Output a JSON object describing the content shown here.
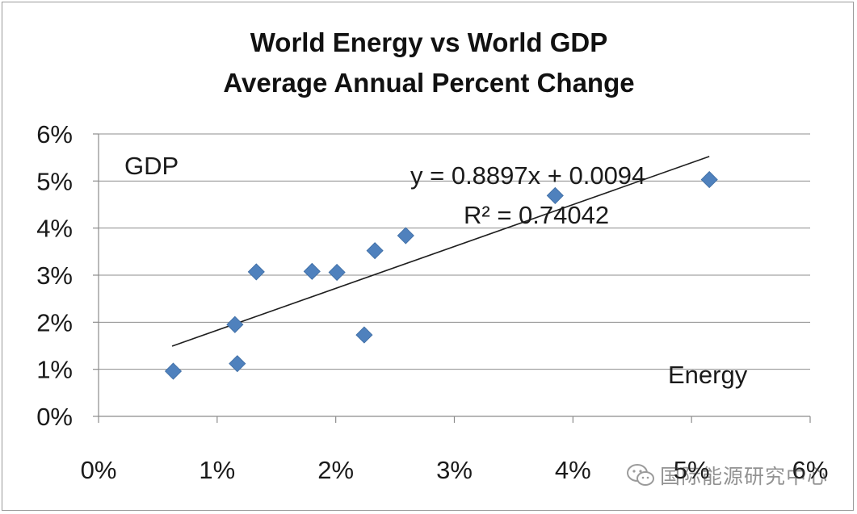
{
  "chart_data": {
    "type": "scatter",
    "title": [
      "World Energy vs World GDP",
      "Average Annual Percent Change"
    ],
    "xlabel": "Energy",
    "ylabel": "GDP",
    "xlim": [
      0,
      0.06
    ],
    "ylim": [
      0,
      0.06
    ],
    "x_ticks": [
      "0%",
      "1%",
      "2%",
      "3%",
      "4%",
      "5%",
      "6%"
    ],
    "y_ticks": [
      "0%",
      "1%",
      "2%",
      "3%",
      "4%",
      "5%",
      "6%"
    ],
    "grid": "horizontal",
    "series": [
      {
        "points": [
          {
            "x": 0.0063,
            "y": 0.0096
          },
          {
            "x": 0.0115,
            "y": 0.0195
          },
          {
            "x": 0.0117,
            "y": 0.0112
          },
          {
            "x": 0.0133,
            "y": 0.0307
          },
          {
            "x": 0.018,
            "y": 0.0308
          },
          {
            "x": 0.0201,
            "y": 0.0306
          },
          {
            "x": 0.0224,
            "y": 0.0173
          },
          {
            "x": 0.0233,
            "y": 0.0352
          },
          {
            "x": 0.0259,
            "y": 0.0384
          },
          {
            "x": 0.0385,
            "y": 0.0469
          },
          {
            "x": 0.0515,
            "y": 0.0503
          }
        ],
        "color": "#4f81bd",
        "marker": "diamond"
      }
    ],
    "trendline": {
      "type": "linear",
      "slope": 0.8897,
      "intercept": 0.0094,
      "x_range": [
        0.0062,
        0.0515
      ],
      "equation": "y = 0.8897x + 0.0094",
      "r_squared": "R² = 0.74042"
    }
  },
  "watermark": {
    "text": "国际能源研究中心",
    "icon": "wechat-icon"
  }
}
